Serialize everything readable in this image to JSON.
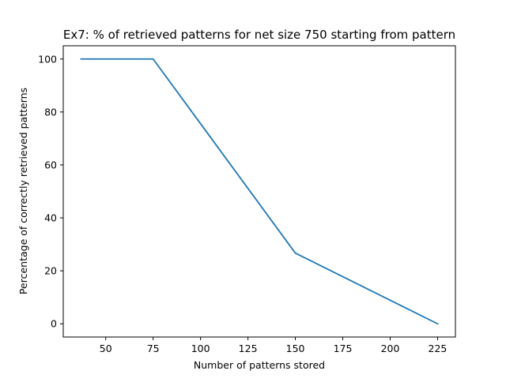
{
  "chart_data": {
    "type": "line",
    "title": "Ex7: % of retrieved patterns for net size 750 starting from pattern",
    "xlabel": "Number of patterns stored",
    "ylabel": "Percentage of correctly retrieved patterns",
    "x": [
      37,
      75,
      150,
      225
    ],
    "series": [
      {
        "values": [
          100,
          100,
          26.7,
          0
        ],
        "color": "#1f77b4"
      }
    ],
    "xlim": [
      27.6,
      234.4
    ],
    "ylim": [
      -5,
      105
    ],
    "xticks": [
      50,
      75,
      100,
      125,
      150,
      175,
      200,
      225
    ],
    "yticks": [
      0,
      20,
      40,
      60,
      80,
      100
    ],
    "grid": false,
    "legend": "none"
  }
}
